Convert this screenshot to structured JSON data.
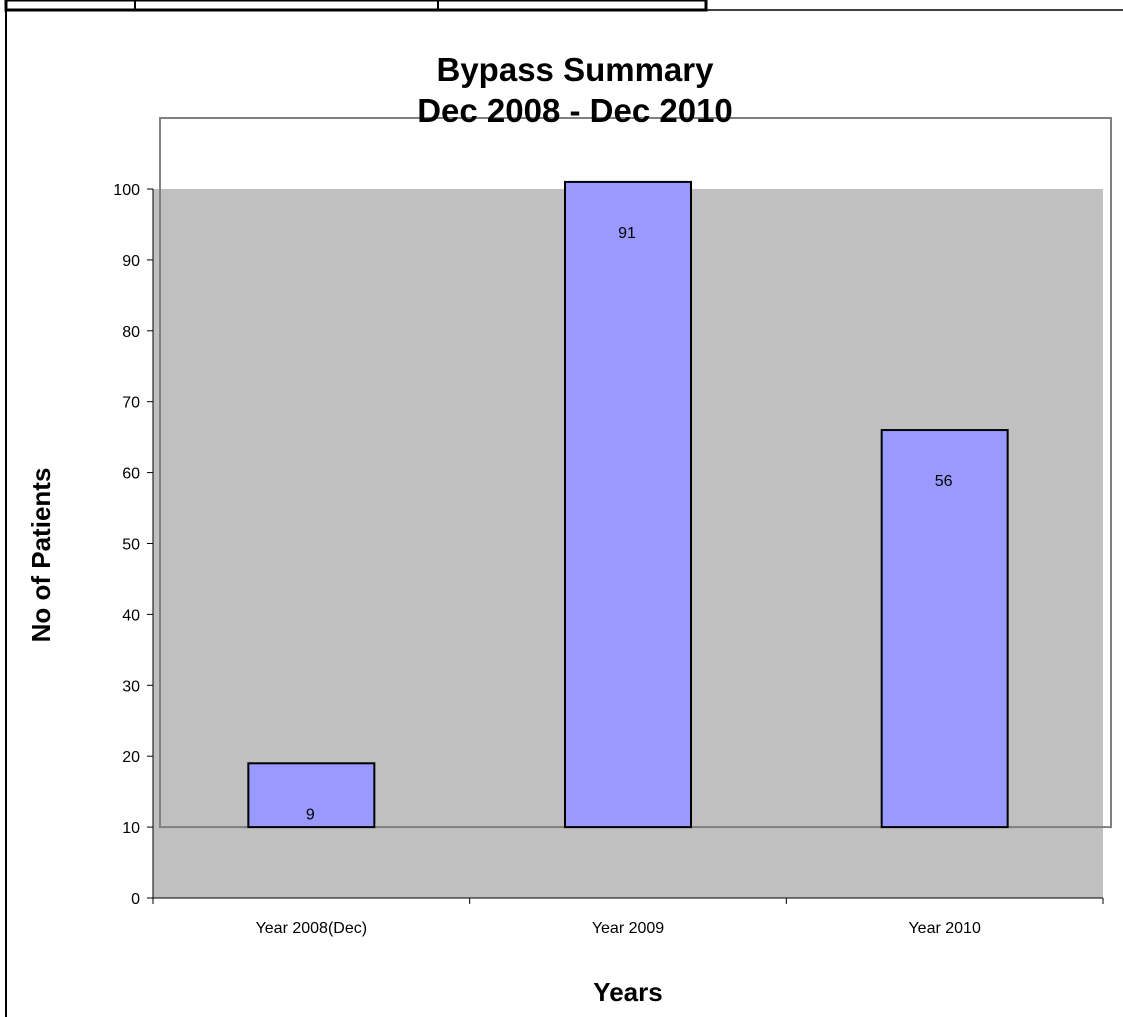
{
  "chart_data": {
    "type": "bar",
    "title": "Bypass Summary",
    "subtitle": "Dec 2008 - Dec 2010",
    "xlabel": "Years",
    "ylabel": "No of Patients",
    "categories": [
      "Year 2008(Dec)",
      "Year 2009",
      "Year 2010"
    ],
    "values": [
      9,
      91,
      56
    ],
    "data_labels": [
      "9",
      "91",
      "56"
    ],
    "ylim": [
      0,
      100
    ],
    "yticks": [
      0,
      10,
      20,
      30,
      40,
      50,
      60,
      70,
      80,
      90,
      100
    ],
    "grid": false,
    "legend": "none",
    "colors": {
      "bar_fill": "#9999ff",
      "bar_stroke": "#000000",
      "plot_background": "#c0c0c0",
      "frame_stroke": "#808080"
    }
  }
}
